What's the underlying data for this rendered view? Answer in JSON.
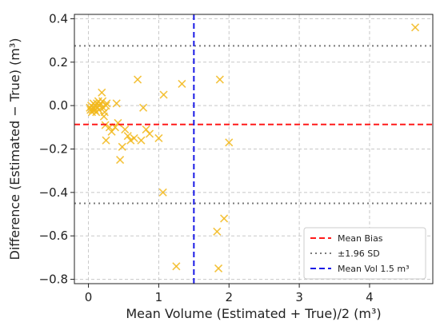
{
  "chart_data": {
    "type": "scatter",
    "title": "",
    "xlabel": "Mean Volume (Estimated + True)/2 (m³)",
    "ylabel": "Difference (Estimated − True) (m³)",
    "xlim": [
      -0.2,
      4.9
    ],
    "ylim": [
      -0.82,
      0.42
    ],
    "xticks": [
      0,
      1,
      2,
      3,
      4
    ],
    "yticks": [
      -0.8,
      -0.6,
      -0.4,
      -0.2,
      0.0,
      0.2,
      0.4
    ],
    "xtick_labels": [
      "0",
      "1",
      "2",
      "3",
      "4"
    ],
    "ytick_labels": [
      "−0.8",
      "−0.6",
      "−0.4",
      "−0.2",
      "0.0",
      "0.2",
      "0.4"
    ],
    "grid": true,
    "marker": "x",
    "marker_color": "#f2b81c",
    "points": [
      {
        "x": 0.02,
        "y": -0.01
      },
      {
        "x": 0.03,
        "y": -0.02
      },
      {
        "x": 0.04,
        "y": 0.0
      },
      {
        "x": 0.05,
        "y": -0.03
      },
      {
        "x": 0.06,
        "y": -0.02
      },
      {
        "x": 0.07,
        "y": 0.01
      },
      {
        "x": 0.08,
        "y": -0.01
      },
      {
        "x": 0.09,
        "y": -0.02
      },
      {
        "x": 0.1,
        "y": 0.0
      },
      {
        "x": 0.11,
        "y": -0.03
      },
      {
        "x": 0.12,
        "y": 0.01
      },
      {
        "x": 0.13,
        "y": -0.01
      },
      {
        "x": 0.14,
        "y": 0.02
      },
      {
        "x": 0.15,
        "y": -0.02
      },
      {
        "x": 0.16,
        "y": 0.0
      },
      {
        "x": 0.17,
        "y": 0.01
      },
      {
        "x": 0.19,
        "y": 0.06
      },
      {
        "x": 0.2,
        "y": 0.02
      },
      {
        "x": 0.21,
        "y": -0.01
      },
      {
        "x": 0.22,
        "y": -0.05
      },
      {
        "x": 0.23,
        "y": -0.03
      },
      {
        "x": 0.24,
        "y": -0.09
      },
      {
        "x": 0.25,
        "y": 0.0
      },
      {
        "x": 0.26,
        "y": 0.01
      },
      {
        "x": 0.25,
        "y": -0.16
      },
      {
        "x": 0.3,
        "y": -0.1
      },
      {
        "x": 0.33,
        "y": -0.12
      },
      {
        "x": 0.38,
        "y": -0.1
      },
      {
        "x": 0.4,
        "y": 0.01
      },
      {
        "x": 0.42,
        "y": -0.08
      },
      {
        "x": 0.45,
        "y": -0.25
      },
      {
        "x": 0.48,
        "y": -0.19
      },
      {
        "x": 0.52,
        "y": -0.11
      },
      {
        "x": 0.56,
        "y": -0.14
      },
      {
        "x": 0.6,
        "y": -0.16
      },
      {
        "x": 0.65,
        "y": -0.15
      },
      {
        "x": 0.7,
        "y": 0.12
      },
      {
        "x": 0.75,
        "y": -0.16
      },
      {
        "x": 0.78,
        "y": -0.01
      },
      {
        "x": 0.82,
        "y": -0.11
      },
      {
        "x": 0.87,
        "y": -0.13
      },
      {
        "x": 1.0,
        "y": -0.15
      },
      {
        "x": 1.07,
        "y": 0.05
      },
      {
        "x": 1.06,
        "y": -0.4
      },
      {
        "x": 1.25,
        "y": -0.74
      },
      {
        "x": 1.33,
        "y": 0.1
      },
      {
        "x": 1.83,
        "y": -0.58
      },
      {
        "x": 1.85,
        "y": -0.75
      },
      {
        "x": 1.87,
        "y": 0.12
      },
      {
        "x": 1.93,
        "y": -0.52
      },
      {
        "x": 2.0,
        "y": -0.17
      },
      {
        "x": 4.65,
        "y": 0.36
      }
    ],
    "mean_bias": -0.087,
    "loa_upper": 0.275,
    "loa_lower": -0.45,
    "mean_vol_line": 1.5,
    "colors": {
      "bias": "#ff1a1a",
      "loa": "#7a7a7a",
      "mean_vol": "#1a1ae6"
    },
    "legend": {
      "placement": "lower-right",
      "entries": [
        {
          "label": "Mean Bias",
          "style": "bias"
        },
        {
          "label": "±1.96 SD",
          "style": "loa"
        },
        {
          "label": "Mean Vol 1.5 m³",
          "style": "mean_vol"
        }
      ]
    }
  }
}
